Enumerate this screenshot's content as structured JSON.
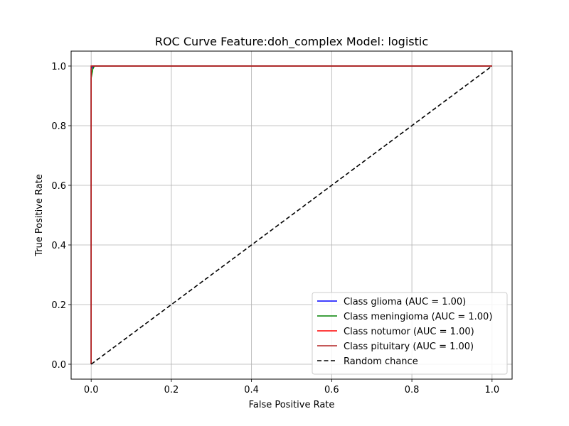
{
  "chart_data": {
    "type": "line",
    "title": "ROC Curve Feature:doh_complex Model: logistic",
    "xlabel": "False Positive Rate",
    "ylabel": "True Positive Rate",
    "xlim": [
      -0.05,
      1.05
    ],
    "ylim": [
      -0.05,
      1.05
    ],
    "xticks": [
      0.0,
      0.2,
      0.4,
      0.6,
      0.8,
      1.0
    ],
    "yticks": [
      0.0,
      0.2,
      0.4,
      0.6,
      0.8,
      1.0
    ],
    "xtick_labels": [
      "0.0",
      "0.2",
      "0.4",
      "0.6",
      "0.8",
      "1.0"
    ],
    "ytick_labels": [
      "0.0",
      "0.2",
      "0.4",
      "0.6",
      "0.8",
      "1.0"
    ],
    "grid": true,
    "legend_position": "lower-right",
    "series": [
      {
        "name": "Class glioma (AUC = 1.00)",
        "color": "#0000ff",
        "dash": "solid",
        "x": [
          0.0,
          0.0,
          0.0,
          0.002,
          0.005,
          1.0
        ],
        "y": [
          0.0,
          0.95,
          0.99,
          0.995,
          1.0,
          1.0
        ]
      },
      {
        "name": "Class meningioma (AUC = 1.00)",
        "color": "#008000",
        "dash": "solid",
        "x": [
          0.0,
          0.0,
          0.002,
          0.004,
          0.008,
          1.0
        ],
        "y": [
          0.0,
          0.96,
          0.975,
          0.99,
          1.0,
          1.0
        ]
      },
      {
        "name": "Class notumor (AUC = 1.00)",
        "color": "#ff0000",
        "dash": "solid",
        "x": [
          0.0,
          0.0,
          0.0,
          1.0
        ],
        "y": [
          0.0,
          0.99,
          1.0,
          1.0
        ]
      },
      {
        "name": "Class pituitary (AUC = 1.00)",
        "color": "#b22222",
        "dash": "solid",
        "x": [
          0.0,
          0.0,
          0.0,
          1.0
        ],
        "y": [
          0.0,
          0.995,
          1.0,
          1.0
        ]
      },
      {
        "name": "Random chance",
        "color": "#000000",
        "dash": "dashed",
        "x": [
          0.0,
          1.0
        ],
        "y": [
          0.0,
          1.0
        ]
      }
    ]
  }
}
